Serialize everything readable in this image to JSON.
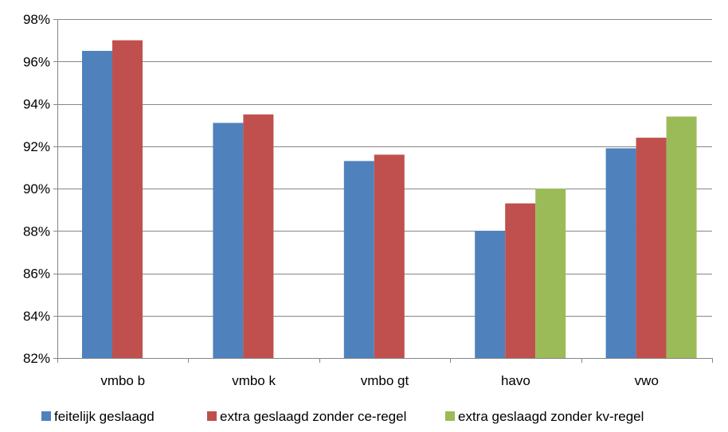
{
  "chart_data": {
    "type": "bar",
    "title": "",
    "xlabel": "",
    "ylabel": "",
    "categories": [
      "vmbo b",
      "vmbo k",
      "vmbo gt",
      "havo",
      "vwo"
    ],
    "series": [
      {
        "name": "feitelijk geslaagd",
        "color": "#4F81BD",
        "values": [
          96.5,
          93.1,
          91.3,
          88.0,
          91.9
        ]
      },
      {
        "name": "extra geslaagd zonder ce-regel",
        "color": "#C0504D",
        "values": [
          97.0,
          93.5,
          91.6,
          89.3,
          92.4
        ]
      },
      {
        "name": "extra geslaagd zonder kv-regel",
        "color": "#9BBB59",
        "values": [
          null,
          null,
          null,
          90.0,
          93.4
        ]
      }
    ],
    "ylim": [
      82,
      98
    ],
    "yticks": [
      82,
      84,
      86,
      88,
      90,
      92,
      94,
      96,
      98
    ],
    "ytick_labels": [
      "82%",
      "84%",
      "86%",
      "88%",
      "90%",
      "92%",
      "94%",
      "96%",
      "98%"
    ],
    "grid": true,
    "legend_position": "bottom"
  }
}
